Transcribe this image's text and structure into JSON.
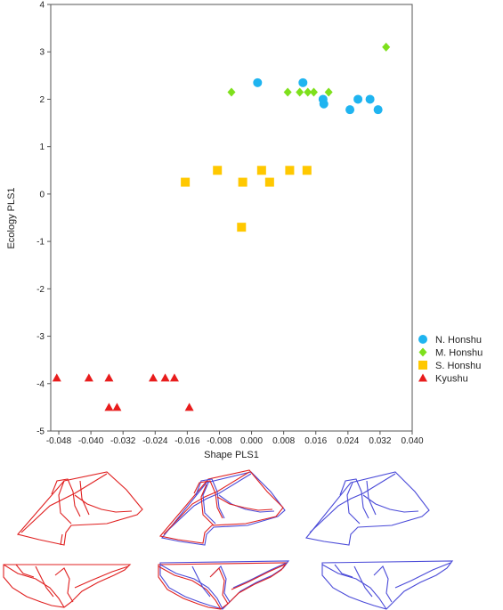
{
  "chart_data": {
    "type": "scatter",
    "xlabel": "Shape PLS1",
    "ylabel": "Ecology PLS1",
    "xlim": [
      -0.05,
      0.04
    ],
    "ylim": [
      -5,
      4
    ],
    "x_ticks": [
      -0.048,
      -0.04,
      -0.032,
      -0.024,
      -0.016,
      -0.008,
      0.0,
      0.008,
      0.016,
      0.024,
      0.032,
      0.04
    ],
    "x_tick_labels": [
      "-0.048",
      "-0.040",
      "-0.032",
      "-0.024",
      "-0.016",
      "-0.008",
      "0.000",
      "0.008",
      "0.016",
      "0.024",
      "0.032",
      "0.040"
    ],
    "y_ticks": [
      -5,
      -4,
      -3,
      -2,
      -1,
      0,
      1,
      2,
      3,
      4
    ],
    "y_tick_labels": [
      "-5",
      "-4",
      "-3",
      "-2",
      "-1",
      "0",
      "1",
      "2",
      "3",
      "4"
    ],
    "grid": false,
    "legend_position": "right",
    "series": [
      {
        "name": "N. Honshu",
        "marker": "circle",
        "color": "#1fb4f0",
        "points": [
          [
            0.0015,
            2.35
          ],
          [
            0.0128,
            2.35
          ],
          [
            0.0178,
            2.0
          ],
          [
            0.018,
            1.9
          ],
          [
            0.0245,
            1.78
          ],
          [
            0.0265,
            2.0
          ],
          [
            0.0295,
            2.0
          ],
          [
            0.0315,
            1.78
          ]
        ]
      },
      {
        "name": "M. Honshu",
        "marker": "diamond",
        "color": "#7ee01c",
        "points": [
          [
            -0.005,
            2.15
          ],
          [
            0.009,
            2.15
          ],
          [
            0.012,
            2.15
          ],
          [
            0.014,
            2.15
          ],
          [
            0.0155,
            2.15
          ],
          [
            0.0192,
            2.15
          ],
          [
            0.0335,
            3.1
          ]
        ]
      },
      {
        "name": "S. Honshu",
        "marker": "square",
        "color": "#ffc800",
        "points": [
          [
            -0.0165,
            0.25
          ],
          [
            -0.0085,
            0.5
          ],
          [
            -0.0022,
            0.25
          ],
          [
            0.0025,
            0.5
          ],
          [
            0.0045,
            0.25
          ],
          [
            0.0095,
            0.5
          ],
          [
            0.0138,
            0.5
          ],
          [
            -0.0025,
            -0.7
          ]
        ]
      },
      {
        "name": "Kyushu",
        "marker": "triangle",
        "color": "#e81c1c",
        "points": [
          [
            -0.0485,
            -3.88
          ],
          [
            -0.0405,
            -3.88
          ],
          [
            -0.0355,
            -3.88
          ],
          [
            -0.0245,
            -3.88
          ],
          [
            -0.0215,
            -3.88
          ],
          [
            -0.0192,
            -3.88
          ],
          [
            -0.0355,
            -4.5
          ],
          [
            -0.0335,
            -4.5
          ],
          [
            -0.0155,
            -4.5
          ]
        ]
      }
    ]
  },
  "style": {
    "axis_color": "#555555",
    "outline_red": "#e02020",
    "outline_blue": "#4a4ad8"
  }
}
